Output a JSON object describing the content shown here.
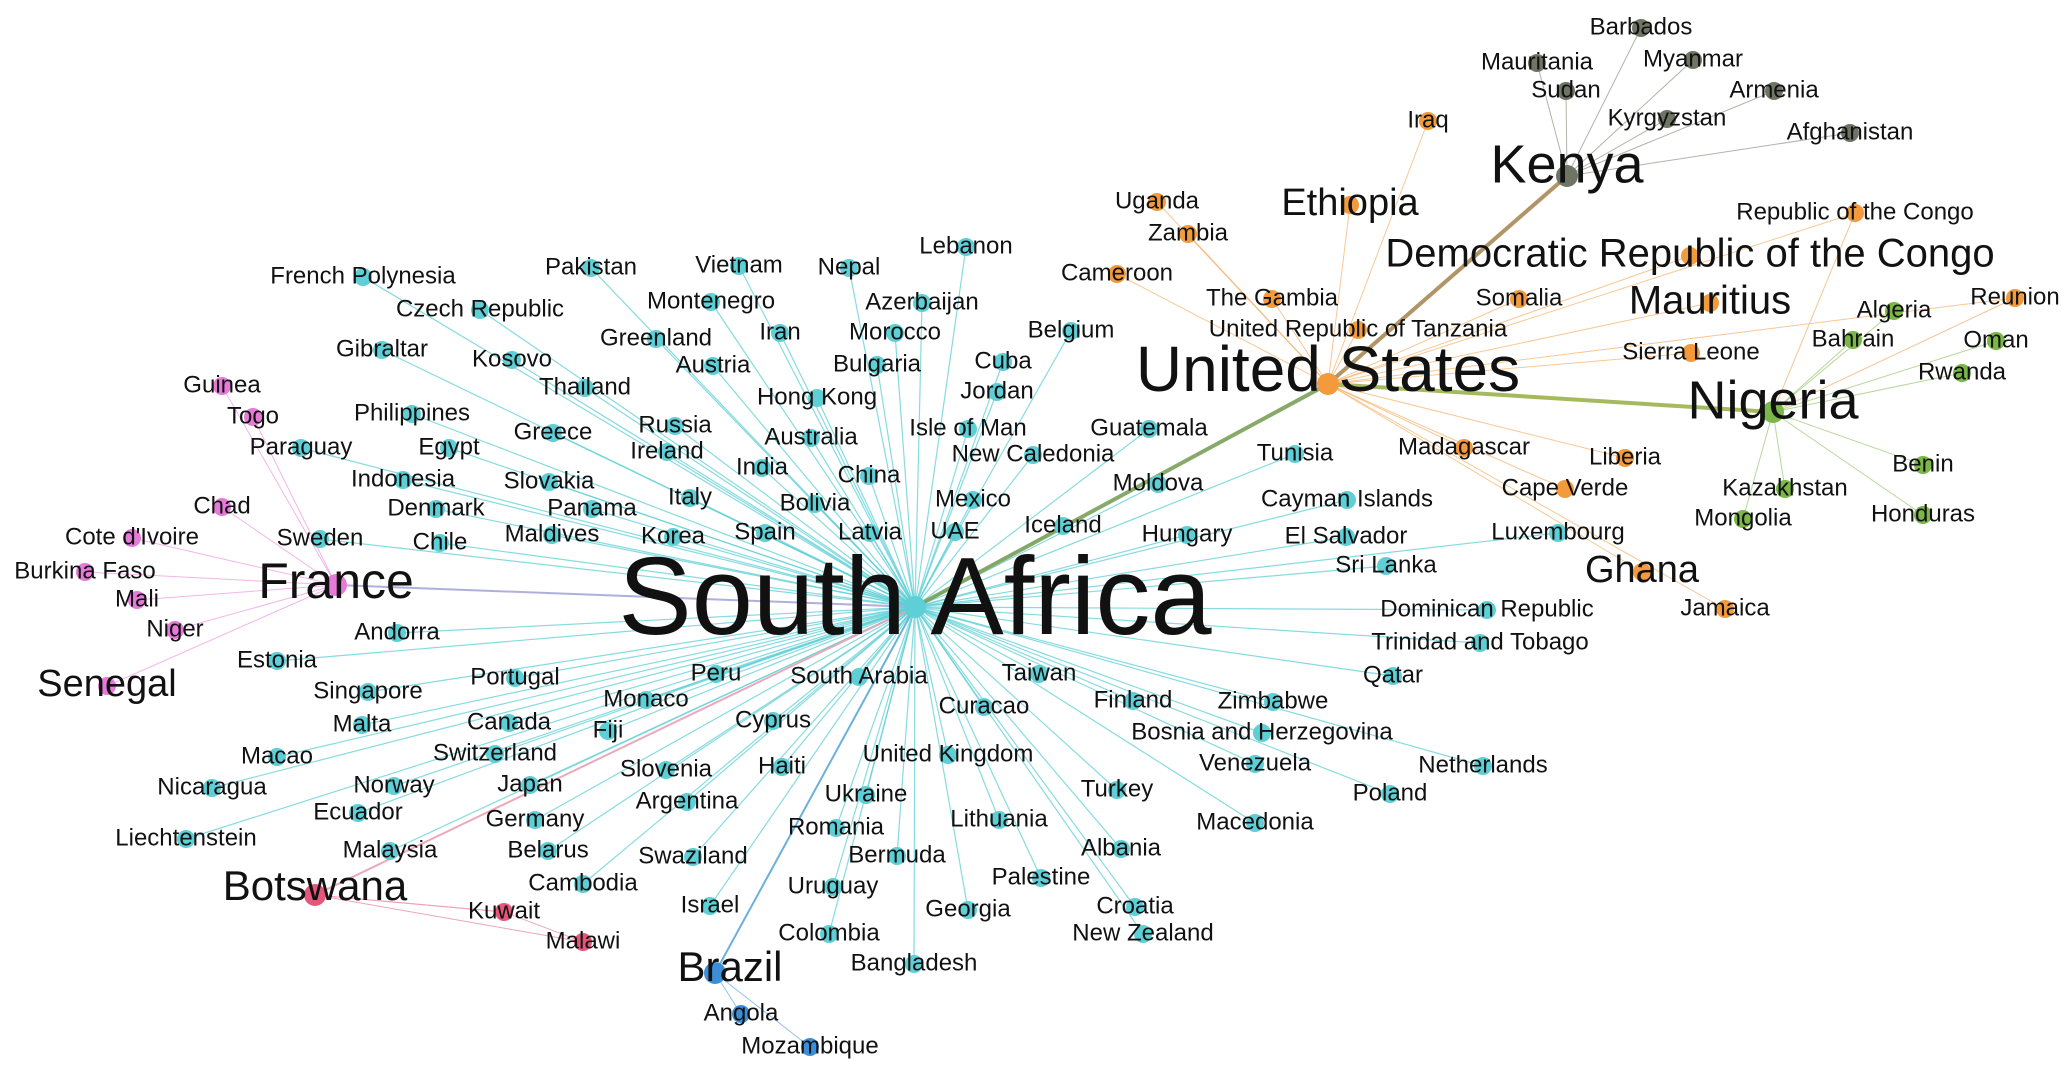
{
  "colors": {
    "cyan": "#5ecfd6",
    "orange": "#f29a3c",
    "gray": "#6f7565",
    "green": "#7ab648",
    "pink": "#e67ad8",
    "red": "#e4577a",
    "blue": "#3a8fd8"
  },
  "network": {
    "nodes": [
      {
        "id": "south-africa",
        "label": "South Africa",
        "group": "cyan",
        "hub": true
      },
      {
        "id": "united-states",
        "label": "United States",
        "group": "orange",
        "hub": true
      },
      {
        "id": "kenya",
        "label": "Kenya",
        "group": "gray",
        "hub": true
      },
      {
        "id": "nigeria",
        "label": "Nigeria",
        "group": "green",
        "hub": true
      },
      {
        "id": "france",
        "label": "France",
        "group": "pink",
        "hub": true
      },
      {
        "id": "botswana",
        "label": "Botswana",
        "group": "red",
        "hub": true
      },
      {
        "id": "brazil",
        "label": "Brazil",
        "group": "blue",
        "hub": true
      },
      {
        "id": "barbados",
        "label": "Barbados",
        "group": "gray"
      },
      {
        "id": "mauritania",
        "label": "Mauritania",
        "group": "gray"
      },
      {
        "id": "myanmar",
        "label": "Myanmar",
        "group": "gray"
      },
      {
        "id": "sudan",
        "label": "Sudan",
        "group": "gray"
      },
      {
        "id": "armenia",
        "label": "Armenia",
        "group": "gray"
      },
      {
        "id": "kyrgyzstan",
        "label": "Kyrgyzstan",
        "group": "gray"
      },
      {
        "id": "afghanistan",
        "label": "Afghanistan",
        "group": "gray"
      },
      {
        "id": "iraq",
        "label": "Iraq",
        "group": "orange"
      },
      {
        "id": "ethiopia",
        "label": "Ethiopia",
        "group": "orange"
      },
      {
        "id": "uganda",
        "label": "Uganda",
        "group": "orange"
      },
      {
        "id": "zambia",
        "label": "Zambia",
        "group": "orange"
      },
      {
        "id": "cameroon",
        "label": "Cameroon",
        "group": "orange"
      },
      {
        "id": "the-gambia",
        "label": "The Gambia",
        "group": "orange"
      },
      {
        "id": "tanzania",
        "label": "United Republic of Tanzania",
        "group": "orange"
      },
      {
        "id": "drc",
        "label": "Democratic Republic of the Congo",
        "group": "orange"
      },
      {
        "id": "somalia",
        "label": "Somalia",
        "group": "orange"
      },
      {
        "id": "mauritius",
        "label": "Mauritius",
        "group": "orange"
      },
      {
        "id": "sierra-leone",
        "label": "Sierra Leone",
        "group": "orange"
      },
      {
        "id": "republic-congo",
        "label": "Republic of the Congo",
        "group": "orange"
      },
      {
        "id": "reunion",
        "label": "Reunion",
        "group": "orange"
      },
      {
        "id": "madagascar",
        "label": "Madagascar",
        "group": "orange"
      },
      {
        "id": "liberia",
        "label": "Liberia",
        "group": "orange"
      },
      {
        "id": "cape-verde",
        "label": "Cape Verde",
        "group": "orange"
      },
      {
        "id": "ghana",
        "label": "Ghana",
        "group": "orange"
      },
      {
        "id": "jamaica",
        "label": "Jamaica",
        "group": "orange"
      },
      {
        "id": "algeria",
        "label": "Algeria",
        "group": "green"
      },
      {
        "id": "bahrain",
        "label": "Bahrain",
        "group": "green"
      },
      {
        "id": "oman",
        "label": "Oman",
        "group": "green"
      },
      {
        "id": "rwanda",
        "label": "Rwanda",
        "group": "green"
      },
      {
        "id": "benin",
        "label": "Benin",
        "group": "green"
      },
      {
        "id": "kazakhstan",
        "label": "Kazakhstan",
        "group": "green"
      },
      {
        "id": "mongolia",
        "label": "Mongolia",
        "group": "green"
      },
      {
        "id": "honduras",
        "label": "Honduras",
        "group": "green"
      },
      {
        "id": "guinea",
        "label": "Guinea",
        "group": "pink"
      },
      {
        "id": "togo",
        "label": "Togo",
        "group": "pink"
      },
      {
        "id": "chad",
        "label": "Chad",
        "group": "pink"
      },
      {
        "id": "cote-divoire",
        "label": "Cote d'Ivoire",
        "group": "pink"
      },
      {
        "id": "burkina-faso",
        "label": "Burkina Faso",
        "group": "pink"
      },
      {
        "id": "mali",
        "label": "Mali",
        "group": "pink"
      },
      {
        "id": "niger",
        "label": "Niger",
        "group": "pink"
      },
      {
        "id": "senegal",
        "label": "Senegal",
        "group": "pink"
      },
      {
        "id": "kuwait",
        "label": "Kuwait",
        "group": "red"
      },
      {
        "id": "malawi",
        "label": "Malawi",
        "group": "red"
      },
      {
        "id": "angola",
        "label": "Angola",
        "group": "blue"
      },
      {
        "id": "mozambique",
        "label": "Mozambique",
        "group": "blue"
      },
      {
        "id": "french-polynesia",
        "label": "French Polynesia",
        "group": "cyan"
      },
      {
        "id": "pakistan",
        "label": "Pakistan",
        "group": "cyan"
      },
      {
        "id": "vietnam",
        "label": "Vietnam",
        "group": "cyan"
      },
      {
        "id": "nepal",
        "label": "Nepal",
        "group": "cyan"
      },
      {
        "id": "lebanon",
        "label": "Lebanon",
        "group": "cyan"
      },
      {
        "id": "czech-republic",
        "label": "Czech Republic",
        "group": "cyan"
      },
      {
        "id": "montenegro",
        "label": "Montenegro",
        "group": "cyan"
      },
      {
        "id": "azerbaijan",
        "label": "Azerbaijan",
        "group": "cyan"
      },
      {
        "id": "gibraltar",
        "label": "Gibraltar",
        "group": "cyan"
      },
      {
        "id": "kosovo",
        "label": "Kosovo",
        "group": "cyan"
      },
      {
        "id": "greenland",
        "label": "Greenland",
        "group": "cyan"
      },
      {
        "id": "iran",
        "label": "Iran",
        "group": "cyan"
      },
      {
        "id": "morocco",
        "label": "Morocco",
        "group": "cyan"
      },
      {
        "id": "belgium",
        "label": "Belgium",
        "group": "cyan"
      },
      {
        "id": "austria",
        "label": "Austria",
        "group": "cyan"
      },
      {
        "id": "bulgaria",
        "label": "Bulgaria",
        "group": "cyan"
      },
      {
        "id": "cuba",
        "label": "Cuba",
        "group": "cyan"
      },
      {
        "id": "thailand",
        "label": "Thailand",
        "group": "cyan"
      },
      {
        "id": "hong-kong",
        "label": "Hong Kong",
        "group": "cyan"
      },
      {
        "id": "jordan",
        "label": "Jordan",
        "group": "cyan"
      },
      {
        "id": "philippines",
        "label": "Philippines",
        "group": "cyan"
      },
      {
        "id": "russia",
        "label": "Russia",
        "group": "cyan"
      },
      {
        "id": "paraguay",
        "label": "Paraguay",
        "group": "cyan"
      },
      {
        "id": "egypt",
        "label": "Egypt",
        "group": "cyan"
      },
      {
        "id": "greece",
        "label": "Greece",
        "group": "cyan"
      },
      {
        "id": "ireland",
        "label": "Ireland",
        "group": "cyan"
      },
      {
        "id": "australia",
        "label": "Australia",
        "group": "cyan"
      },
      {
        "id": "isle-of-man",
        "label": "Isle of Man",
        "group": "cyan"
      },
      {
        "id": "guatemala",
        "label": "Guatemala",
        "group": "cyan"
      },
      {
        "id": "indonesia",
        "label": "Indonesia",
        "group": "cyan"
      },
      {
        "id": "slovakia",
        "label": "Slovakia",
        "group": "cyan"
      },
      {
        "id": "india",
        "label": "India",
        "group": "cyan"
      },
      {
        "id": "china",
        "label": "China",
        "group": "cyan"
      },
      {
        "id": "new-caledonia",
        "label": "New Caledonia",
        "group": "cyan"
      },
      {
        "id": "tunisia",
        "label": "Tunisia",
        "group": "cyan"
      },
      {
        "id": "denmark",
        "label": "Denmark",
        "group": "cyan"
      },
      {
        "id": "panama",
        "label": "Panama",
        "group": "cyan"
      },
      {
        "id": "italy",
        "label": "Italy",
        "group": "cyan"
      },
      {
        "id": "bolivia",
        "label": "Bolivia",
        "group": "cyan"
      },
      {
        "id": "mexico",
        "label": "Mexico",
        "group": "cyan"
      },
      {
        "id": "moldova",
        "label": "Moldova",
        "group": "cyan"
      },
      {
        "id": "cayman-islands",
        "label": "Cayman Islands",
        "group": "cyan"
      },
      {
        "id": "sweden",
        "label": "Sweden",
        "group": "cyan"
      },
      {
        "id": "chile",
        "label": "Chile",
        "group": "cyan"
      },
      {
        "id": "maldives",
        "label": "Maldives",
        "group": "cyan"
      },
      {
        "id": "korea",
        "label": "Korea",
        "group": "cyan"
      },
      {
        "id": "spain",
        "label": "Spain",
        "group": "cyan"
      },
      {
        "id": "latvia",
        "label": "Latvia",
        "group": "cyan"
      },
      {
        "id": "uae",
        "label": "UAE",
        "group": "cyan"
      },
      {
        "id": "iceland",
        "label": "Iceland",
        "group": "cyan"
      },
      {
        "id": "hungary",
        "label": "Hungary",
        "group": "cyan"
      },
      {
        "id": "el-salvador",
        "label": "El Salvador",
        "group": "cyan"
      },
      {
        "id": "luxembourg",
        "label": "Luxembourg",
        "group": "cyan"
      },
      {
        "id": "sri-lanka",
        "label": "Sri Lanka",
        "group": "cyan"
      },
      {
        "id": "andorra",
        "label": "Andorra",
        "group": "cyan"
      },
      {
        "id": "dominican-republic",
        "label": "Dominican Republic",
        "group": "cyan"
      },
      {
        "id": "estonia",
        "label": "Estonia",
        "group": "cyan"
      },
      {
        "id": "trinidad-tobago",
        "label": "Trinidad and Tobago",
        "group": "cyan"
      },
      {
        "id": "portugal",
        "label": "Portugal",
        "group": "cyan"
      },
      {
        "id": "peru",
        "label": "Peru",
        "group": "cyan"
      },
      {
        "id": "south-arabia",
        "label": "South Arabia",
        "group": "cyan"
      },
      {
        "id": "taiwan",
        "label": "Taiwan",
        "group": "cyan"
      },
      {
        "id": "qatar",
        "label": "Qatar",
        "group": "cyan"
      },
      {
        "id": "singapore",
        "label": "Singapore",
        "group": "cyan"
      },
      {
        "id": "monaco",
        "label": "Monaco",
        "group": "cyan"
      },
      {
        "id": "curacao",
        "label": "Curacao",
        "group": "cyan"
      },
      {
        "id": "finland",
        "label": "Finland",
        "group": "cyan"
      },
      {
        "id": "zimbabwe",
        "label": "Zimbabwe",
        "group": "cyan"
      },
      {
        "id": "malta",
        "label": "Malta",
        "group": "cyan"
      },
      {
        "id": "canada",
        "label": "Canada",
        "group": "cyan"
      },
      {
        "id": "fiji",
        "label": "Fiji",
        "group": "cyan"
      },
      {
        "id": "cyprus",
        "label": "Cyprus",
        "group": "cyan"
      },
      {
        "id": "bosnia",
        "label": "Bosnia and Herzegovina",
        "group": "cyan"
      },
      {
        "id": "macao",
        "label": "Macao",
        "group": "cyan"
      },
      {
        "id": "switzerland",
        "label": "Switzerland",
        "group": "cyan"
      },
      {
        "id": "haiti",
        "label": "Haiti",
        "group": "cyan"
      },
      {
        "id": "united-kingdom",
        "label": "United Kingdom",
        "group": "cyan"
      },
      {
        "id": "venezuela",
        "label": "Venezuela",
        "group": "cyan"
      },
      {
        "id": "netherlands",
        "label": "Netherlands",
        "group": "cyan"
      },
      {
        "id": "nicaragua",
        "label": "Nicaragua",
        "group": "cyan"
      },
      {
        "id": "norway",
        "label": "Norway",
        "group": "cyan"
      },
      {
        "id": "japan",
        "label": "Japan",
        "group": "cyan"
      },
      {
        "id": "slovenia",
        "label": "Slovenia",
        "group": "cyan"
      },
      {
        "id": "turkey",
        "label": "Turkey",
        "group": "cyan"
      },
      {
        "id": "poland",
        "label": "Poland",
        "group": "cyan"
      },
      {
        "id": "ecuador",
        "label": "Ecuador",
        "group": "cyan"
      },
      {
        "id": "germany",
        "label": "Germany",
        "group": "cyan"
      },
      {
        "id": "argentina",
        "label": "Argentina",
        "group": "cyan"
      },
      {
        "id": "ukraine",
        "label": "Ukraine",
        "group": "cyan"
      },
      {
        "id": "lithuania",
        "label": "Lithuania",
        "group": "cyan"
      },
      {
        "id": "macedonia",
        "label": "Macedonia",
        "group": "cyan"
      },
      {
        "id": "liechtenstein",
        "label": "Liechtenstein",
        "group": "cyan"
      },
      {
        "id": "malaysia",
        "label": "Malaysia",
        "group": "cyan"
      },
      {
        "id": "belarus",
        "label": "Belarus",
        "group": "cyan"
      },
      {
        "id": "romania",
        "label": "Romania",
        "group": "cyan"
      },
      {
        "id": "albania",
        "label": "Albania",
        "group": "cyan"
      },
      {
        "id": "swaziland",
        "label": "Swaziland",
        "group": "cyan"
      },
      {
        "id": "bermuda",
        "label": "Bermuda",
        "group": "cyan"
      },
      {
        "id": "cambodia",
        "label": "Cambodia",
        "group": "cyan"
      },
      {
        "id": "uruguay",
        "label": "Uruguay",
        "group": "cyan"
      },
      {
        "id": "palestine",
        "label": "Palestine",
        "group": "cyan"
      },
      {
        "id": "israel",
        "label": "Israel",
        "group": "cyan"
      },
      {
        "id": "georgia",
        "label": "Georgia",
        "group": "cyan"
      },
      {
        "id": "croatia",
        "label": "Croatia",
        "group": "cyan"
      },
      {
        "id": "colombia",
        "label": "Colombia",
        "group": "cyan"
      },
      {
        "id": "new-zealand",
        "label": "New Zealand",
        "group": "cyan"
      },
      {
        "id": "bangladesh",
        "label": "Bangladesh",
        "group": "cyan"
      }
    ]
  }
}
